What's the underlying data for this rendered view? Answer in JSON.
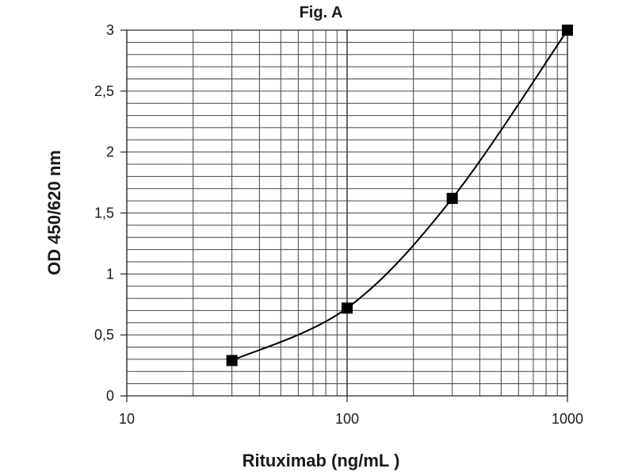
{
  "chart_data": {
    "type": "scatter",
    "title": "Fig. A",
    "xlabel": "Rituximab (ng/mL )",
    "ylabel": "OD 450/620 nm",
    "x_scale": "log",
    "xlim": [
      10,
      1000
    ],
    "ylim": [
      0,
      3
    ],
    "x_ticks": [
      10,
      100,
      1000
    ],
    "x_tick_labels": [
      "10",
      "100",
      "1000"
    ],
    "y_ticks": [
      0,
      0.5,
      1,
      1.5,
      2,
      2.5,
      3
    ],
    "y_tick_labels": [
      "0",
      "0,5",
      "1",
      "1,5",
      "2",
      "2,5",
      "3"
    ],
    "grid": true,
    "series": [
      {
        "x": [
          30,
          100,
          300,
          1000
        ],
        "y": [
          0.29,
          0.72,
          1.62,
          3.0
        ],
        "marker": "square",
        "line": "smooth",
        "color": "#000000"
      }
    ]
  }
}
